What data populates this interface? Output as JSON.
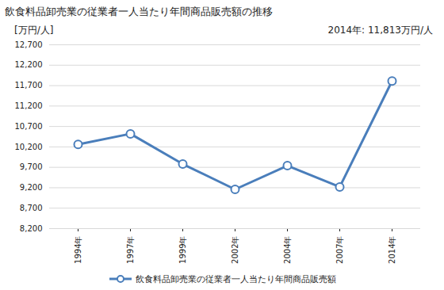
{
  "chart_data": {
    "type": "line",
    "title": "飲食料品卸売業の従業者一人当たり年間商品販売額の推移",
    "y_label": "[万円/人]",
    "annotation": "2014年: 11,813万円/人",
    "categories": [
      "1994年",
      "1997年",
      "1999年",
      "2002年",
      "2004年",
      "2007年",
      "2014年"
    ],
    "series": [
      {
        "name": "飲食料品卸売業の従業者一人当たり年間商品販売額",
        "color": "#4a7ebb",
        "marker": "circle",
        "values": [
          10260,
          10520,
          9780,
          9160,
          9740,
          9220,
          11813
        ]
      }
    ],
    "ylim": [
      8200,
      12700
    ],
    "yticks": [
      {
        "value": 8200,
        "label": "8,200"
      },
      {
        "value": 8700,
        "label": "8,700"
      },
      {
        "value": 9200,
        "label": "9,200"
      },
      {
        "value": 9700,
        "label": "9,700"
      },
      {
        "value": 10200,
        "label": "10,200"
      },
      {
        "value": 10700,
        "label": "10,700"
      },
      {
        "value": 11200,
        "label": "11,200"
      },
      {
        "value": 11700,
        "label": "11,700"
      },
      {
        "value": 12200,
        "label": "12,200"
      },
      {
        "value": 12700,
        "label": "12,700"
      }
    ],
    "grid": true,
    "legend": "bottom"
  }
}
